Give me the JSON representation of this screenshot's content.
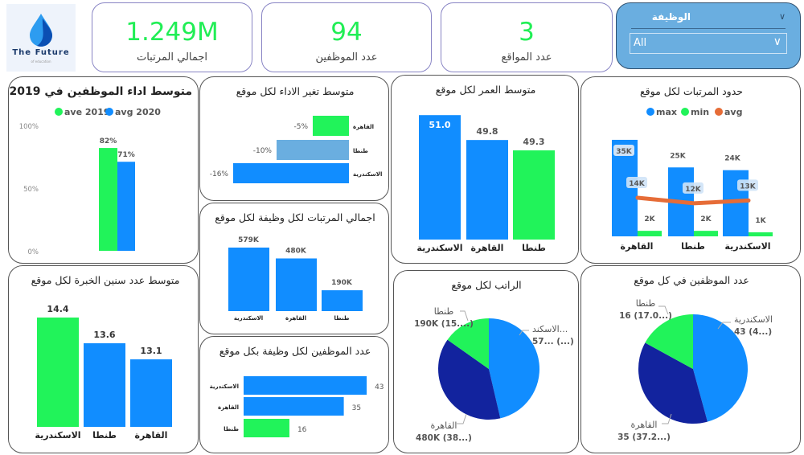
{
  "logo": {
    "name": "The Future",
    "tagline": "of education"
  },
  "kpis": [
    {
      "value": "1.249M",
      "label": "اجمالي المرتبات"
    },
    {
      "value": "94",
      "label": "عدد الموظفين"
    },
    {
      "value": "3",
      "label": "عدد المواقع"
    }
  ],
  "slicer": {
    "title": "الوظيفة",
    "value": "All"
  },
  "colors": {
    "blue": "#118dff",
    "green": "#21f35a",
    "light_blue": "#6aaee0",
    "navy": "#12239e",
    "orange": "#e66c37"
  },
  "chart_data": [
    {
      "type": "bar",
      "title": "متوسط اداء الموظفين في 2019 و2020",
      "legend": "top",
      "series": [
        {
          "name": "ave 2019",
          "values": [
            82
          ],
          "labels": [
            "82%"
          ]
        },
        {
          "name": "avg 2020",
          "values": [
            71
          ],
          "labels": [
            "71%"
          ]
        }
      ],
      "yticks": [
        "100%",
        "50%",
        "0%"
      ],
      "ylim": [
        0,
        100
      ]
    },
    {
      "type": "bar",
      "orientation": "horizontal",
      "title": "متوسط تغير الاداء لكل موقع",
      "categories": [
        "القاهرة",
        "طنطا",
        "الاسكندرية"
      ],
      "values": [
        -5,
        -10,
        -16
      ],
      "labels": [
        "-5%",
        "-10%",
        "-16%"
      ]
    },
    {
      "type": "bar",
      "title": "متوسط العمر لكل موقع",
      "categories": [
        "الاسكندرية",
        "القاهرة",
        "طنطا"
      ],
      "values": [
        51.0,
        49.8,
        49.3
      ],
      "labels": [
        "51.0",
        "49.8",
        "49.3"
      ],
      "ylim": [
        45,
        52
      ]
    },
    {
      "type": "bar",
      "title": "حدود المرتبات لكل موقع",
      "legend": "top",
      "categories": [
        "القاهرة",
        "طنطا",
        "الاسكندرية"
      ],
      "series": [
        {
          "name": "max",
          "values": [
            35,
            25,
            24
          ],
          "labels": [
            "35K",
            "25K",
            "24K"
          ]
        },
        {
          "name": "min",
          "values": [
            2,
            2,
            1
          ],
          "labels": [
            "2K",
            "2K",
            "1K"
          ]
        },
        {
          "name": "avg",
          "type": "line",
          "values": [
            14,
            12,
            13
          ],
          "labels": [
            "14K",
            "12K",
            "13K"
          ]
        }
      ],
      "unit": "K"
    },
    {
      "type": "bar",
      "title": "اجمالي المرتبات لكل وظيفة لكل موقع",
      "categories": [
        "الاسكندرية",
        "القاهرة",
        "طنطا"
      ],
      "values": [
        579,
        480,
        190
      ],
      "labels": [
        "579K",
        "480K",
        "190K"
      ],
      "unit": "K"
    },
    {
      "type": "bar",
      "orientation": "horizontal",
      "title": "عدد الموظفين لكل وظيفة بكل موقع",
      "categories": [
        "الاسكندرية",
        "القاهرة",
        "طنطا"
      ],
      "values": [
        43,
        35,
        16
      ],
      "labels": [
        "43",
        "35",
        "16"
      ]
    },
    {
      "type": "bar",
      "title": "متوسط عدد سنين الخبرة لكل موقع",
      "categories": [
        "الاسكندرية",
        "طنطا",
        "القاهرة"
      ],
      "values": [
        14.4,
        13.6,
        13.1
      ],
      "labels": [
        "14.4",
        "13.6",
        "13.1"
      ],
      "ylim": [
        11,
        15
      ]
    },
    {
      "type": "pie",
      "title": "الراتب لكل موقع",
      "categories": [
        "الاسكندرية",
        "القاهرة",
        "طنطا"
      ],
      "values": [
        579,
        480,
        190
      ],
      "slice_labels": [
        [
          "الاسكند...",
          "57... (...)"
        ],
        [
          "القاهرة",
          "480K (38...)"
        ],
        [
          "طنطا",
          "190K (15....)"
        ]
      ]
    },
    {
      "type": "pie",
      "title": "عدد الموظفين في كل موقع",
      "categories": [
        "الاسكندرية",
        "القاهرة",
        "طنطا"
      ],
      "values": [
        43,
        35,
        16
      ],
      "slice_labels": [
        [
          "الاسكندرية",
          "43 (4...)"
        ],
        [
          "القاهرة",
          "35 (37.2...)"
        ],
        [
          "طنطا",
          "16 (17.0...)"
        ]
      ]
    }
  ]
}
